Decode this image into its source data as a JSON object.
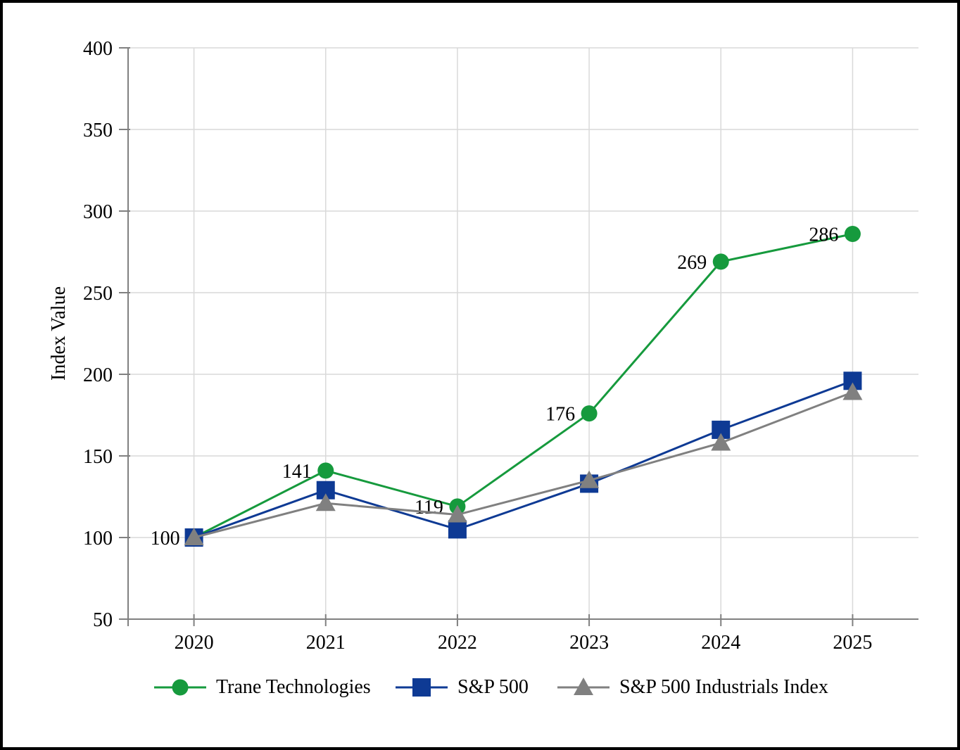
{
  "chart_data": {
    "type": "line",
    "title": "",
    "xlabel": "",
    "ylabel": "Index Value",
    "categories": [
      "2020",
      "2021",
      "2022",
      "2023",
      "2024",
      "2025"
    ],
    "ylim": [
      50,
      400
    ],
    "ytick_step": 50,
    "ytick_labels": [
      "50",
      "100",
      "150",
      "200",
      "250",
      "300",
      "350",
      "400"
    ],
    "grid": true,
    "legend_position": "bottom",
    "gridline_color": "#d9d9d9",
    "axis_color": "#808080",
    "text_color": "#000000",
    "series": [
      {
        "name": "Trane Technologies",
        "marker": "circle",
        "color": "#169a3d",
        "values": [
          100,
          141,
          119,
          176,
          269,
          286
        ],
        "labels_shown": true,
        "data_labels": [
          "100",
          "141",
          "119",
          "176",
          "269",
          "286"
        ]
      },
      {
        "name": "S&P 500",
        "marker": "square",
        "color": "#0e3a94",
        "values": [
          100,
          129,
          105,
          133,
          166,
          196
        ],
        "labels_shown": false
      },
      {
        "name": "S&P 500 Industrials Index",
        "marker": "triangle",
        "color": "#808080",
        "values": [
          100,
          121,
          114,
          135,
          158,
          189
        ],
        "labels_shown": false
      }
    ]
  }
}
